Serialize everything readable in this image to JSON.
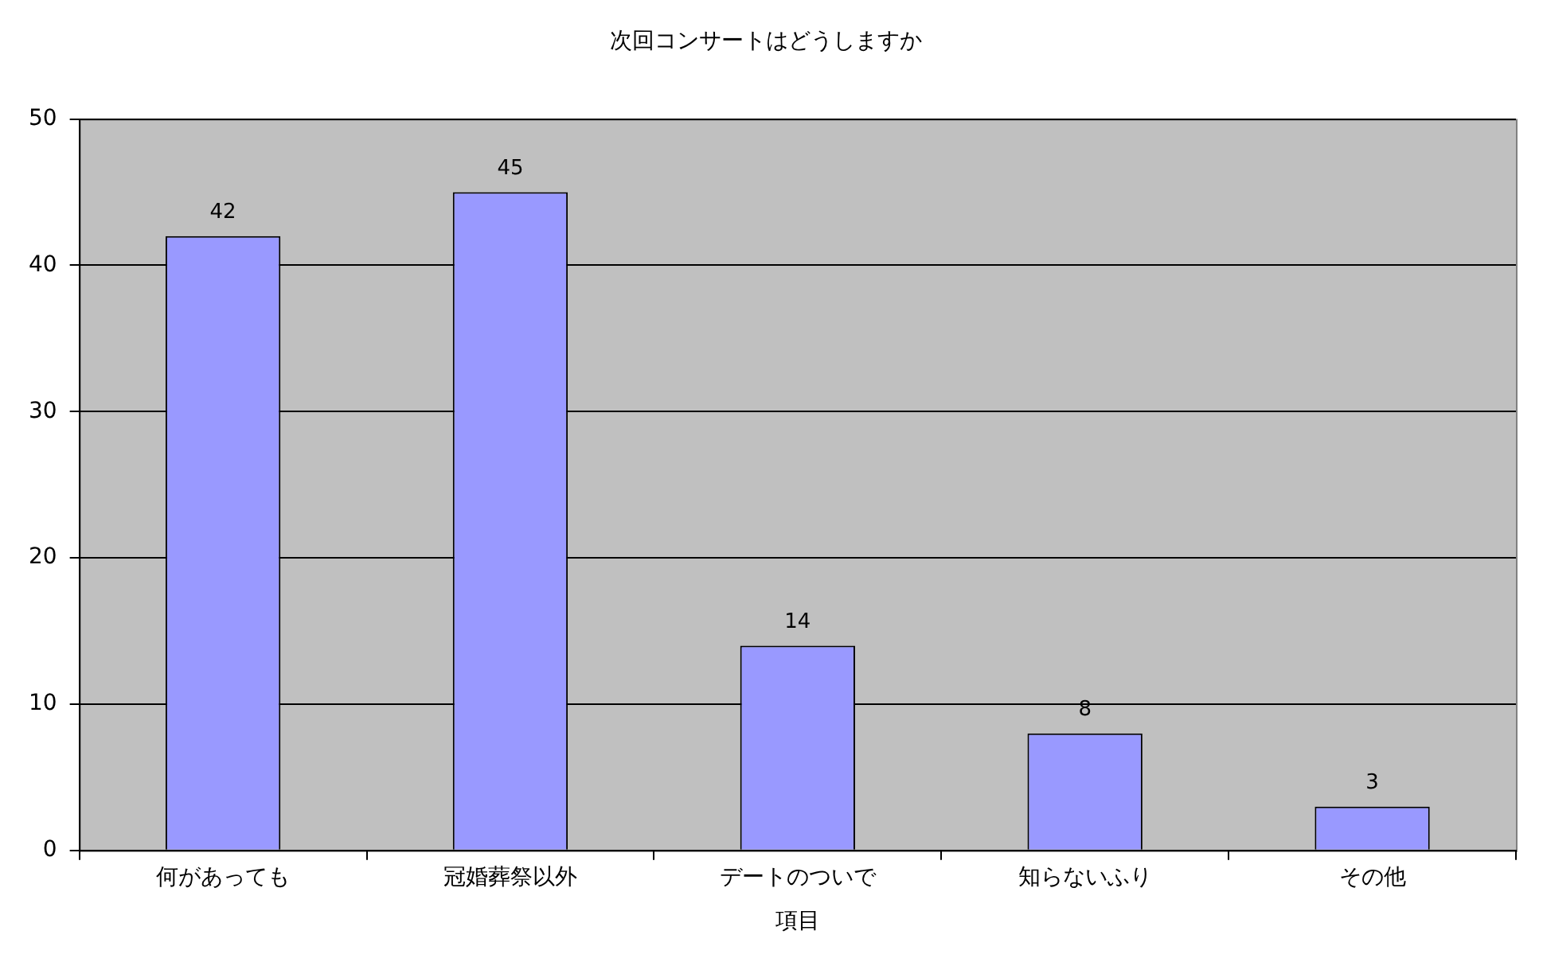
{
  "chart_data": {
    "type": "bar",
    "title": "次回コンサートはどうしますか",
    "xlabel": "項目",
    "categories": [
      "何があっても",
      "冠婚葬祭以外",
      "デートのついで",
      "知らないふり",
      "その他"
    ],
    "values": [
      42,
      45,
      14,
      8,
      3
    ],
    "color": "#9999ff",
    "ylim": [
      0,
      50
    ],
    "yticks": [
      0,
      10,
      20,
      30,
      40,
      50
    ],
    "grid": "y",
    "data_labels": true,
    "legend": false
  }
}
